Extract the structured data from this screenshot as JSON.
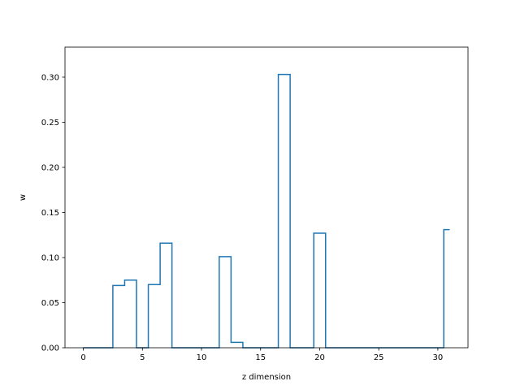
{
  "chart_data": {
    "type": "line",
    "title": "",
    "xlabel": "z dimension",
    "ylabel": "w",
    "xlim": [
      -1.55,
      32.55
    ],
    "ylim": [
      0,
      0.3333
    ],
    "grid": false,
    "line_color": "#1f77b4",
    "xticks": [
      0,
      5,
      10,
      15,
      20,
      25,
      30
    ],
    "yticks": [
      0.0,
      0.05,
      0.1,
      0.15,
      0.2,
      0.25,
      0.3
    ],
    "xtick_labels": [
      "0",
      "5",
      "10",
      "15",
      "20",
      "25",
      "30"
    ],
    "ytick_labels": [
      "0.00",
      "0.05",
      "0.10",
      "0.15",
      "0.20",
      "0.25",
      "0.30"
    ],
    "step_where": "mid",
    "x": [
      0,
      1,
      2,
      3,
      4,
      5,
      6,
      7,
      8,
      9,
      10,
      11,
      12,
      13,
      14,
      15,
      16,
      17,
      18,
      19,
      20,
      21,
      22,
      23,
      24,
      25,
      26,
      27,
      28,
      29,
      30,
      31
    ],
    "y": [
      0,
      0,
      0,
      0.069,
      0.075,
      0,
      0.07,
      0.116,
      0,
      0,
      0,
      0,
      0.101,
      0.006,
      0,
      0,
      0,
      0.303,
      0,
      0,
      0.127,
      0,
      0,
      0,
      0,
      0,
      0,
      0,
      0,
      0,
      0,
      0.131
    ]
  }
}
